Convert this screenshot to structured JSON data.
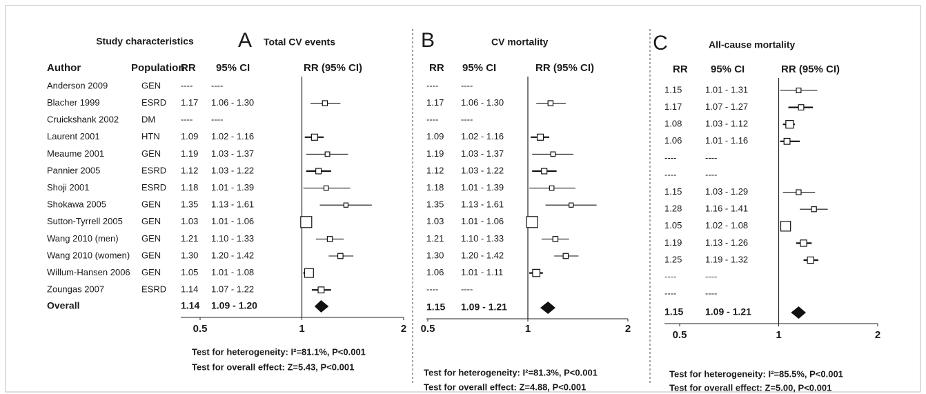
{
  "study_characteristics": {
    "title": "Study characteristics",
    "headers": [
      "Author",
      "Population"
    ],
    "authors": [
      "Anderson 2009",
      "Blacher 1999",
      "Cruickshank 2002",
      "Laurent 2001",
      "Meaume 2001",
      "Pannier 2005",
      "Shoji 2001",
      "Shokawa 2005",
      "Sutton-Tyrrell 2005",
      "Wang 2010 (men)",
      "Wang 2010 (women)",
      "Willum-Hansen 2006",
      "Zoungas 2007"
    ],
    "populations": [
      "GEN",
      "ESRD",
      "DM",
      "HTN",
      "GEN",
      "ESRD",
      "ESRD",
      "GEN",
      "GEN",
      "GEN",
      "GEN",
      "GEN",
      "ESRD"
    ],
    "overall_label": "Overall"
  },
  "chart_data": [
    {
      "type": "forest",
      "panel": "A",
      "title": "Total CV events",
      "headers": [
        "RR",
        "95% CI",
        "RR (95% CI)"
      ],
      "values": [
        null,
        1.17,
        null,
        1.09,
        1.19,
        1.12,
        1.18,
        1.35,
        1.03,
        1.21,
        1.3,
        1.05,
        1.14
      ],
      "value_labels": [
        "----",
        "1.17",
        "----",
        "1.09",
        "1.19",
        "1.12",
        "1.18",
        "1.35",
        "1.03",
        "1.21",
        "1.30",
        "1.05",
        "1.14"
      ],
      "ci_low": [
        null,
        1.06,
        null,
        1.02,
        1.03,
        1.03,
        1.01,
        1.13,
        1.01,
        1.1,
        1.2,
        1.01,
        1.07
      ],
      "ci_high": [
        null,
        1.3,
        null,
        1.16,
        1.37,
        1.22,
        1.39,
        1.61,
        1.06,
        1.33,
        1.42,
        1.08,
        1.22
      ],
      "ci_labels": [
        "----",
        "1.06 - 1.30",
        "----",
        "1.02 - 1.16",
        "1.03 - 1.37",
        "1.03 - 1.22",
        "1.01 - 1.39",
        "1.13 - 1.61",
        "1.01 - 1.06",
        "1.10 - 1.33",
        "1.20 - 1.42",
        "1.01 - 1.08",
        "1.07 - 1.22"
      ],
      "overall": {
        "value": 1.14,
        "value_label": "1.14",
        "ci_low": 1.09,
        "ci_high": 1.2,
        "ci_label": "1.09 - 1.20"
      },
      "xlim": [
        0.5,
        2
      ],
      "xticks": [
        0.5,
        1,
        2
      ],
      "log_x": true,
      "reference_line": 1,
      "heterogeneity": "Test for heterogeneity: I²=81.1%, P<0.001",
      "overall_effect": "Test for overall effect: Z=5.43, P<0.001"
    },
    {
      "type": "forest",
      "panel": "B",
      "title": "CV mortality",
      "headers": [
        "RR",
        "95% CI",
        "RR (95% CI)"
      ],
      "values": [
        null,
        1.17,
        null,
        1.09,
        1.19,
        1.12,
        1.18,
        1.35,
        1.03,
        1.21,
        1.3,
        1.06,
        null
      ],
      "value_labels": [
        "----",
        "1.17",
        "----",
        "1.09",
        "1.19",
        "1.12",
        "1.18",
        "1.35",
        "1.03",
        "1.21",
        "1.30",
        "1.06",
        "----"
      ],
      "ci_low": [
        null,
        1.06,
        null,
        1.02,
        1.03,
        1.03,
        1.01,
        1.13,
        1.01,
        1.1,
        1.2,
        1.01,
        null
      ],
      "ci_high": [
        null,
        1.3,
        null,
        1.16,
        1.37,
        1.22,
        1.39,
        1.61,
        1.06,
        1.33,
        1.42,
        1.11,
        null
      ],
      "ci_labels": [
        "----",
        "1.06 - 1.30",
        "----",
        "1.02 - 1.16",
        "1.03 - 1.37",
        "1.03 - 1.22",
        "1.01 - 1.39",
        "1.13 - 1.61",
        "1.01 - 1.06",
        "1.10 - 1.33",
        "1.20 - 1.42",
        "1.01 - 1.11",
        "----"
      ],
      "overall": {
        "value": 1.15,
        "value_label": "1.15",
        "ci_low": 1.09,
        "ci_high": 1.21,
        "ci_label": "1.09 - 1.21"
      },
      "xlim": [
        0.5,
        2
      ],
      "xticks": [
        0.5,
        1,
        2
      ],
      "log_x": true,
      "reference_line": 1,
      "heterogeneity": "Test for heterogeneity: I²=81.3%, P<0.001",
      "overall_effect": "Test for overall effect: Z=4.88, P<0.001"
    },
    {
      "type": "forest",
      "panel": "C",
      "title": "All-cause mortality",
      "headers": [
        "RR",
        "95% CI",
        "RR (95% CI)"
      ],
      "values": [
        1.15,
        1.17,
        1.08,
        1.06,
        null,
        null,
        1.15,
        1.28,
        1.05,
        1.19,
        1.25,
        null,
        null
      ],
      "value_labels": [
        "1.15",
        "1.17",
        "1.08",
        "1.06",
        "----",
        "----",
        "1.15",
        "1.28",
        "1.05",
        "1.19",
        "1.25",
        "----",
        "----"
      ],
      "ci_low": [
        1.01,
        1.07,
        1.03,
        1.01,
        null,
        null,
        1.03,
        1.16,
        1.02,
        1.13,
        1.19,
        null,
        null
      ],
      "ci_high": [
        1.31,
        1.27,
        1.12,
        1.16,
        null,
        null,
        1.29,
        1.41,
        1.08,
        1.26,
        1.32,
        null,
        null
      ],
      "ci_labels": [
        "1.01 - 1.31",
        "1.07 - 1.27",
        "1.03 - 1.12",
        "1.01 - 1.16",
        "----",
        "----",
        "1.03 - 1.29",
        "1.16 - 1.41",
        "1.02 - 1.08",
        "1.13 - 1.26",
        "1.19 - 1.32",
        "----",
        "----"
      ],
      "overall": {
        "value": 1.15,
        "value_label": "1.15",
        "ci_low": 1.09,
        "ci_high": 1.21,
        "ci_label": "1.09 - 1.21"
      },
      "xlim": [
        0.5,
        2
      ],
      "xticks": [
        0.5,
        1,
        2
      ],
      "log_x": true,
      "reference_line": 1,
      "heterogeneity": "Test for heterogeneity: I²=85.5%, P<0.001",
      "overall_effect": "Test for overall effect: Z=5.00, P<0.001"
    }
  ]
}
